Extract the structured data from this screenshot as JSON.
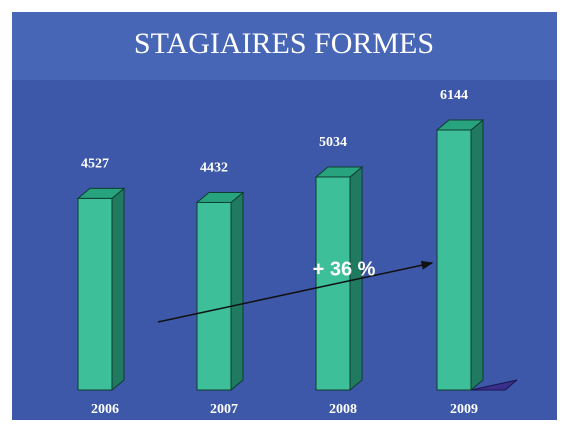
{
  "chart_data": {
    "type": "bar3d",
    "title": "STAGIAIRES FORMES",
    "categories": [
      "2006",
      "2007",
      "2008",
      "2009"
    ],
    "values": [
      4527,
      4432,
      5034,
      6144
    ],
    "color": "#3dbf9a",
    "annotation": "+ 36 %"
  }
}
